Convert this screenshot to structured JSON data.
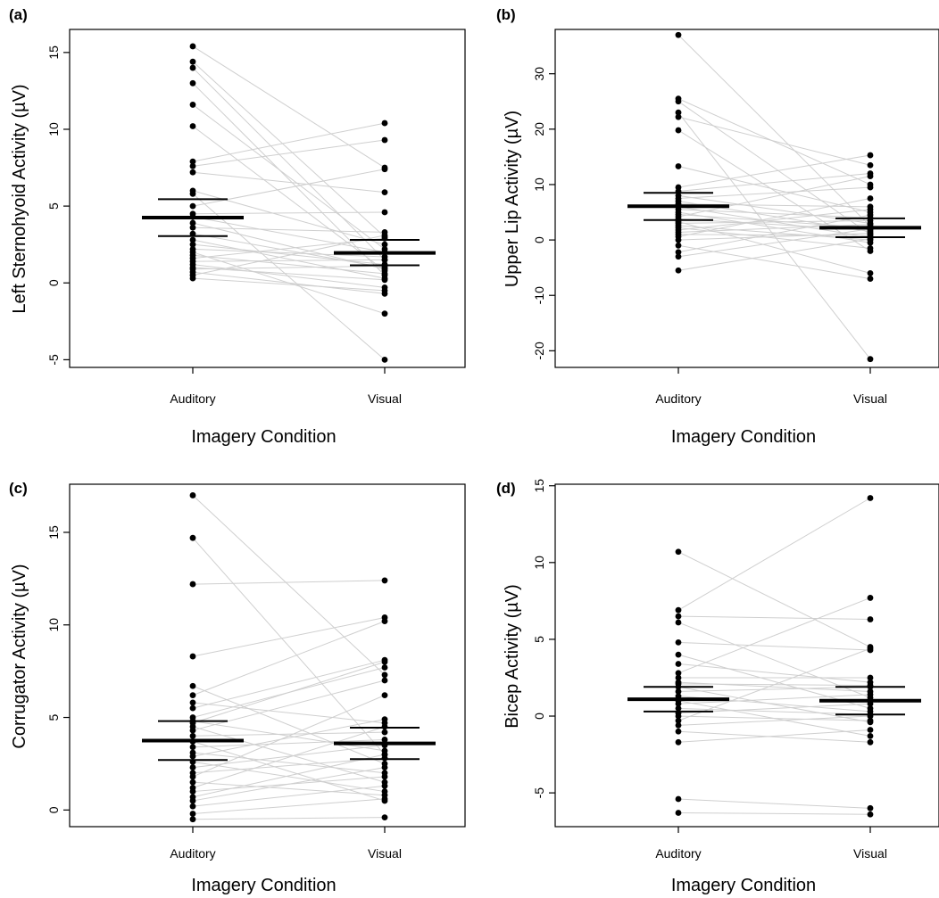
{
  "chart_data": [
    {
      "panel_label": "(a)",
      "type": "scatter",
      "ylabel": "Left Sternohyoid Activity (µV)",
      "xlabel": "Imagery Condition",
      "categories": [
        "Auditory",
        "Visual"
      ],
      "ylim": [
        -5.5,
        16.5
      ],
      "yticks": [
        -5,
        0,
        5,
        10,
        15
      ],
      "summary": [
        {
          "condition": "Auditory",
          "mean": 4.25,
          "ci_low": 3.05,
          "ci_high": 5.45
        },
        {
          "condition": "Visual",
          "mean": 1.95,
          "ci_low": 1.15,
          "ci_high": 2.8
        }
      ],
      "pairs": [
        [
          15.4,
          7.5
        ],
        [
          14.4,
          3.0
        ],
        [
          14.0,
          1.5
        ],
        [
          13.0,
          0.5
        ],
        [
          11.6,
          2.2
        ],
        [
          10.2,
          0.8
        ],
        [
          7.9,
          10.4
        ],
        [
          7.6,
          9.3
        ],
        [
          7.2,
          5.9
        ],
        [
          6.0,
          2.5
        ],
        [
          5.8,
          -5.0
        ],
        [
          5.0,
          7.4
        ],
        [
          4.5,
          4.6
        ],
        [
          4.3,
          2.0
        ],
        [
          3.6,
          3.3
        ],
        [
          3.2,
          1.0
        ],
        [
          2.8,
          0.3
        ],
        [
          2.5,
          1.2
        ],
        [
          2.2,
          1.7
        ],
        [
          2.0,
          -2.0
        ],
        [
          1.8,
          0.6
        ],
        [
          1.6,
          2.9
        ],
        [
          1.4,
          1.5
        ],
        [
          1.2,
          -0.3
        ],
        [
          1.0,
          0.2
        ],
        [
          0.9,
          1.1
        ],
        [
          0.7,
          -0.7
        ],
        [
          0.5,
          3.1
        ],
        [
          0.3,
          -0.5
        ],
        [
          3.9,
          0.9
        ]
      ]
    },
    {
      "panel_label": "(b)",
      "type": "scatter",
      "ylabel": "Upper Lip Activity (µV)",
      "xlabel": "Imagery Condition",
      "categories": [
        "Auditory",
        "Visual"
      ],
      "ylim": [
        -23,
        38
      ],
      "yticks": [
        -20,
        -10,
        0,
        10,
        20,
        30
      ],
      "summary": [
        {
          "condition": "Auditory",
          "mean": 6.1,
          "ci_low": 3.6,
          "ci_high": 8.5
        },
        {
          "condition": "Visual",
          "mean": 2.2,
          "ci_low": 0.5,
          "ci_high": 3.9
        }
      ],
      "pairs": [
        [
          37.0,
          2.5
        ],
        [
          25.5,
          10.0
        ],
        [
          25.0,
          1.0
        ],
        [
          23.0,
          -21.5
        ],
        [
          22.2,
          13.5
        ],
        [
          19.8,
          -2.0
        ],
        [
          13.3,
          5.0
        ],
        [
          9.5,
          15.3
        ],
        [
          8.8,
          12.0
        ],
        [
          8.0,
          3.0
        ],
        [
          7.5,
          9.5
        ],
        [
          7.0,
          1.5
        ],
        [
          6.5,
          6.0
        ],
        [
          6.0,
          0.5
        ],
        [
          5.5,
          4.0
        ],
        [
          5.0,
          -0.5
        ],
        [
          4.6,
          2.2
        ],
        [
          4.2,
          11.5
        ],
        [
          3.8,
          1.8
        ],
        [
          3.3,
          -6.0
        ],
        [
          3.0,
          3.5
        ],
        [
          2.6,
          0.0
        ],
        [
          2.2,
          -1.5
        ],
        [
          1.8,
          5.5
        ],
        [
          1.4,
          2.8
        ],
        [
          1.0,
          0.8
        ],
        [
          0.6,
          7.5
        ],
        [
          0.0,
          1.2
        ],
        [
          -1.0,
          -7.0
        ],
        [
          -2.2,
          4.5
        ],
        [
          -3.0,
          2.0
        ],
        [
          -5.5,
          0.2
        ]
      ]
    },
    {
      "panel_label": "(c)",
      "type": "scatter",
      "ylabel": "Corrugator Activity (µV)",
      "xlabel": "Imagery Condition",
      "categories": [
        "Auditory",
        "Visual"
      ],
      "ylim": [
        -0.9,
        17.6
      ],
      "yticks": [
        0,
        5,
        10,
        15
      ],
      "summary": [
        {
          "condition": "Auditory",
          "mean": 3.75,
          "ci_low": 2.7,
          "ci_high": 4.8
        },
        {
          "condition": "Visual",
          "mean": 3.6,
          "ci_low": 2.75,
          "ci_high": 4.45
        }
      ],
      "pairs": [
        [
          17.0,
          7.3
        ],
        [
          14.7,
          3.0
        ],
        [
          12.2,
          12.4
        ],
        [
          8.3,
          10.4
        ],
        [
          6.7,
          2.5
        ],
        [
          6.2,
          10.2
        ],
        [
          5.8,
          4.7
        ],
        [
          5.5,
          8.1
        ],
        [
          5.0,
          7.7
        ],
        [
          4.8,
          3.2
        ],
        [
          4.5,
          1.5
        ],
        [
          4.3,
          7.0
        ],
        [
          4.0,
          4.2
        ],
        [
          3.7,
          0.5
        ],
        [
          3.4,
          3.8
        ],
        [
          3.1,
          2.0
        ],
        [
          2.9,
          4.9
        ],
        [
          2.6,
          1.0
        ],
        [
          2.3,
          3.5
        ],
        [
          2.0,
          2.8
        ],
        [
          1.8,
          6.2
        ],
        [
          1.5,
          0.8
        ],
        [
          1.2,
          4.5
        ],
        [
          1.0,
          1.8
        ],
        [
          0.7,
          3.0
        ],
        [
          0.5,
          2.3
        ],
        [
          0.2,
          1.3
        ],
        [
          -0.2,
          0.6
        ],
        [
          -0.5,
          -0.4
        ],
        [
          4.7,
          8.0
        ]
      ]
    },
    {
      "panel_label": "(d)",
      "type": "scatter",
      "ylabel": "Bicep Activity (µV)",
      "xlabel": "Imagery Condition",
      "categories": [
        "Auditory",
        "Visual"
      ],
      "ylim": [
        -7.2,
        15.1
      ],
      "yticks": [
        -5,
        0,
        5,
        10,
        15
      ],
      "summary": [
        {
          "condition": "Auditory",
          "mean": 1.1,
          "ci_low": 0.3,
          "ci_high": 1.9
        },
        {
          "condition": "Visual",
          "mean": 1.0,
          "ci_low": 0.1,
          "ci_high": 1.9
        }
      ],
      "pairs": [
        [
          10.7,
          4.5
        ],
        [
          6.9,
          14.2
        ],
        [
          6.5,
          6.3
        ],
        [
          6.1,
          1.2
        ],
        [
          4.8,
          4.3
        ],
        [
          4.0,
          0.5
        ],
        [
          3.4,
          2.2
        ],
        [
          2.8,
          7.7
        ],
        [
          2.5,
          2.5
        ],
        [
          2.2,
          1.6
        ],
        [
          1.9,
          -0.4
        ],
        [
          1.6,
          1.9
        ],
        [
          1.3,
          0.3
        ],
        [
          1.0,
          -1.3
        ],
        [
          0.8,
          1.4
        ],
        [
          0.5,
          0.1
        ],
        [
          0.2,
          0.8
        ],
        [
          0.0,
          -0.3
        ],
        [
          -0.3,
          4.4
        ],
        [
          -0.6,
          0.0
        ],
        [
          -1.0,
          -1.7
        ],
        [
          -1.7,
          -0.9
        ],
        [
          -5.4,
          -6.0
        ],
        [
          -6.3,
          -6.4
        ],
        [
          2.1,
          2.0
        ]
      ]
    }
  ]
}
